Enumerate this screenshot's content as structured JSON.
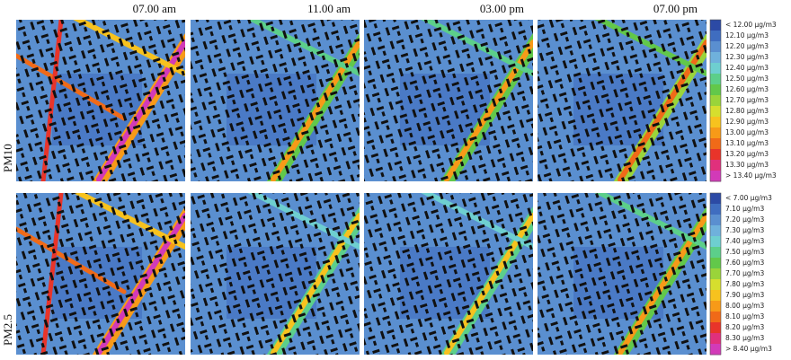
{
  "columns": [
    "07.00 am",
    "11.00 am",
    "03.00 pm",
    "07.00 pm"
  ],
  "rows": [
    {
      "label": "PM10",
      "legend": [
        {
          "label": "< 12.00 μg/m3",
          "color": "#2c4aa5"
        },
        {
          "label": "12.10 μg/m3",
          "color": "#3f6dc0"
        },
        {
          "label": "12.20 μg/m3",
          "color": "#5a8fd0"
        },
        {
          "label": "12.30 μg/m3",
          "color": "#6fb1dc"
        },
        {
          "label": "12.40 μg/m3",
          "color": "#6ecfd0"
        },
        {
          "label": "12.50 μg/m3",
          "color": "#5ccf8a"
        },
        {
          "label": "12.60 μg/m3",
          "color": "#62c84a"
        },
        {
          "label": "12.70 μg/m3",
          "color": "#9ad43a"
        },
        {
          "label": "12.80 μg/m3",
          "color": "#d6de2e"
        },
        {
          "label": "12.90 μg/m3",
          "color": "#f7c21e"
        },
        {
          "label": "13.00 μg/m3",
          "color": "#f79a18"
        },
        {
          "label": "13.10 μg/m3",
          "color": "#f06a18"
        },
        {
          "label": "13.20 μg/m3",
          "color": "#e8342a"
        },
        {
          "label": "13.30 μg/m3",
          "color": "#e0307c"
        },
        {
          "label": "> 13.40 μg/m3",
          "color": "#d23ab8"
        }
      ]
    },
    {
      "label": "PM2.5",
      "legend": [
        {
          "label": "< 7.00 μg/m3",
          "color": "#2c4aa5"
        },
        {
          "label": "7.10 μg/m3",
          "color": "#3f6dc0"
        },
        {
          "label": "7.20 μg/m3",
          "color": "#5a8fd0"
        },
        {
          "label": "7.30 μg/m3",
          "color": "#6fb1dc"
        },
        {
          "label": "7.40 μg/m3",
          "color": "#6ecfd0"
        },
        {
          "label": "7.50 μg/m3",
          "color": "#5ccf8a"
        },
        {
          "label": "7.60 μg/m3",
          "color": "#62c84a"
        },
        {
          "label": "7.70 μg/m3",
          "color": "#9ad43a"
        },
        {
          "label": "7.80 μg/m3",
          "color": "#d6de2e"
        },
        {
          "label": "7.90 μg/m3",
          "color": "#f7c21e"
        },
        {
          "label": "8.00 μg/m3",
          "color": "#f79a18"
        },
        {
          "label": "8.10 μg/m3",
          "color": "#f06a18"
        },
        {
          "label": "8.20 μg/m3",
          "color": "#e8342a"
        },
        {
          "label": "8.30 μg/m3",
          "color": "#e0307c"
        },
        {
          "label": "> 8.40 μg/m3",
          "color": "#d23ab8"
        }
      ]
    }
  ]
}
